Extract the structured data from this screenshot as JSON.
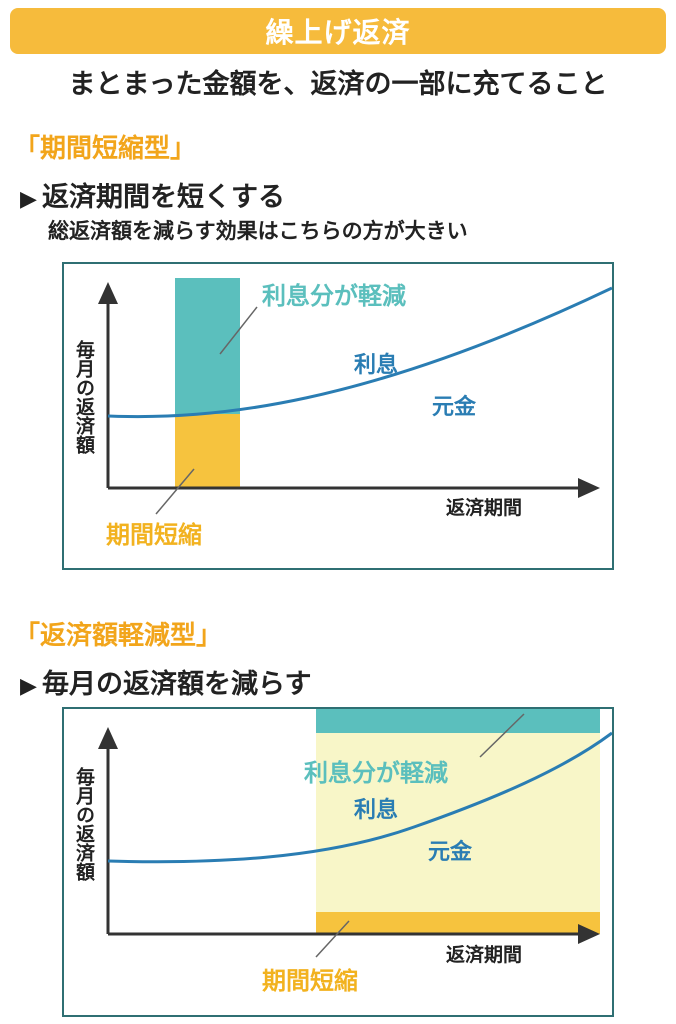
{
  "header": {
    "title": "繰上げ返済",
    "subtitle": "まとまった金額を、返済の一部に充てること"
  },
  "section1": {
    "heading": "「期間短縮型」",
    "bullet": "返済期間を短くする",
    "note": "総返済額を減らす効果はこちらの方が大きい",
    "chart": {
      "y_label": "毎月の返済額",
      "x_label": "返済期間",
      "interest_reduced_label": "利息分が軽減",
      "interest_label": "利息",
      "principal_label": "元金",
      "shortened_label": "期間短縮"
    }
  },
  "section2": {
    "heading": "「返済額軽減型」",
    "bullet": "毎月の返済額を減らす",
    "chart": {
      "y_label": "毎月の返済額",
      "x_label": "返済期間",
      "interest_reduced_label": "利息分が軽減",
      "interest_label": "利息",
      "principal_label": "元金",
      "shortened_label": "期間短縮"
    }
  },
  "colors": {
    "title_bg": "#f6bb3c",
    "heading": "#f2a51b",
    "teal": "#5bbfbd",
    "yellow": "#f6c33e",
    "curve": "#2a7db3",
    "light_yellow": "#f8f6c8",
    "border": "#2f6f73"
  },
  "icons": {
    "bullet": "play-triangle-icon"
  }
}
